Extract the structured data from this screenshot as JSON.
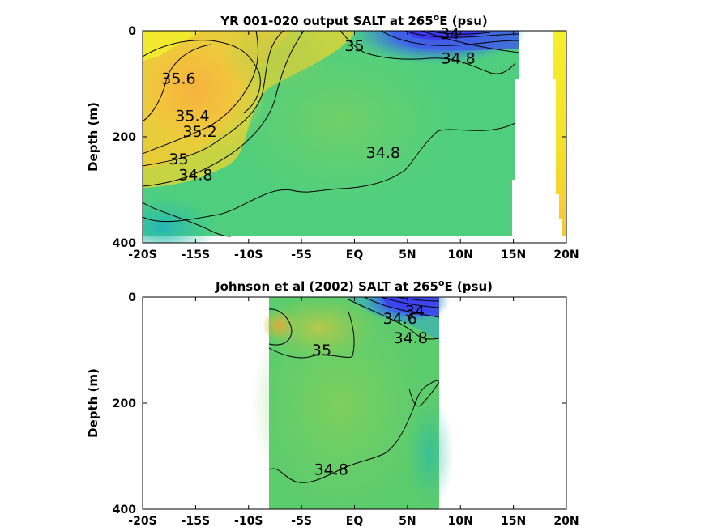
{
  "chart_data": [
    {
      "type": "contour",
      "title": "YR 001-020 output SALT at 265",
      "title_sup": "o",
      "title_suffix": "E (psu)",
      "ylabel": "Depth (m)",
      "xlabel": "",
      "xlim": [
        -20,
        20
      ],
      "ylim": [
        0,
        400
      ],
      "y_reversed": true,
      "x_ticks": [
        -20,
        -15,
        -10,
        -5,
        0,
        5,
        10,
        15,
        20
      ],
      "x_tick_labels": [
        "-20S",
        "-15S",
        "-10S",
        "-5S",
        "EQ",
        "5N",
        "10N",
        "15N",
        "20N"
      ],
      "y_ticks": [
        0,
        200,
        400
      ],
      "y_tick_labels": [
        "0",
        "200",
        "400"
      ],
      "contour_labels": [
        {
          "text": "35.6",
          "x": -16.6,
          "y": 100
        },
        {
          "text": "35.4",
          "x": -15.3,
          "y": 170
        },
        {
          "text": "35.2",
          "x": -14.6,
          "y": 200
        },
        {
          "text": "35",
          "x": -16.6,
          "y": 252
        },
        {
          "text": "34.8",
          "x": -15,
          "y": 282
        },
        {
          "text": "35",
          "x": 0,
          "y": 38
        },
        {
          "text": "34.8",
          "x": 2.7,
          "y": 240
        },
        {
          "text": "34.8",
          "x": 9.8,
          "y": 62
        },
        {
          "text": "34",
          "x": 9,
          "y": 15
        }
      ]
    },
    {
      "type": "contour",
      "title": "Johnson et al (2002) SALT at 265",
      "title_sup": "o",
      "title_suffix": "E (psu)",
      "ylabel": "Depth (m)",
      "xlabel": "",
      "xlim": [
        -20,
        20
      ],
      "ylim": [
        0,
        400
      ],
      "y_reversed": true,
      "data_x_range": [
        -8,
        8
      ],
      "x_ticks": [
        -20,
        -15,
        -10,
        -5,
        0,
        5,
        10,
        15,
        20
      ],
      "x_tick_labels": [
        "-20S",
        "-15S",
        "-10S",
        "-5S",
        "EQ",
        "5N",
        "10N",
        "15N",
        "20N"
      ],
      "y_ticks": [
        0,
        200,
        400
      ],
      "y_tick_labels": [
        "0",
        "200",
        "400"
      ],
      "contour_labels": [
        {
          "text": "35",
          "x": -3.1,
          "y": 110
        },
        {
          "text": "34.8",
          "x": -2.2,
          "y": 335
        },
        {
          "text": "34.6",
          "x": 4.3,
          "y": 50
        },
        {
          "text": "34.8",
          "x": 5.3,
          "y": 87
        },
        {
          "text": "34",
          "x": 5.7,
          "y": 36
        }
      ]
    }
  ]
}
